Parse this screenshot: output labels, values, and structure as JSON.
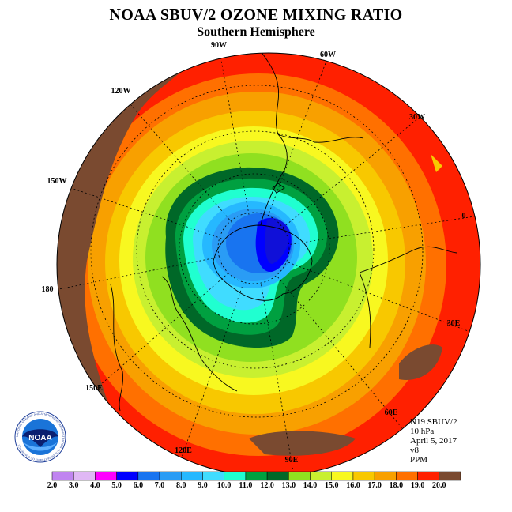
{
  "title": "NOAA SBUV/2 OZONE MIXING RATIO",
  "subtitle": "Southern Hemisphere",
  "info": {
    "satellite": "N19 SBUV/2",
    "level": "10 hPa",
    "date": "April 5, 2017",
    "version": "v8",
    "units": "PPM"
  },
  "longitude_labels": [
    "90W",
    "60W",
    "30W",
    "0",
    "30E",
    "60E",
    "90E",
    "120E",
    "150E",
    "180",
    "150W",
    "120W"
  ],
  "colorbar": {
    "ticks": [
      "2.0",
      "3.0",
      "4.0",
      "5.0",
      "6.0",
      "7.0",
      "8.0",
      "9.0",
      "10.0",
      "11.0",
      "12.0",
      "13.0",
      "14.0",
      "15.0",
      "16.0",
      "17.0",
      "18.0",
      "19.0",
      "20.0"
    ],
    "colors": [
      "#c084f0",
      "#e0b8f5",
      "#ff00ff",
      "#0000ff",
      "#1874f0",
      "#2a9cf5",
      "#26b8ff",
      "#40dcff",
      "#20ffd0",
      "#00a040",
      "#006828",
      "#90e020",
      "#c8f030",
      "#f8f820",
      "#f8c800",
      "#f8a000",
      "#ff7000",
      "#ff2000",
      "#7a4a30"
    ]
  },
  "logo": {
    "text": "NOAA",
    "ring_text": "NATIONAL OCEANIC AND ATMOSPHERIC ADMINISTRATION · U.S. DEPARTMENT OF COMMERCE"
  }
}
